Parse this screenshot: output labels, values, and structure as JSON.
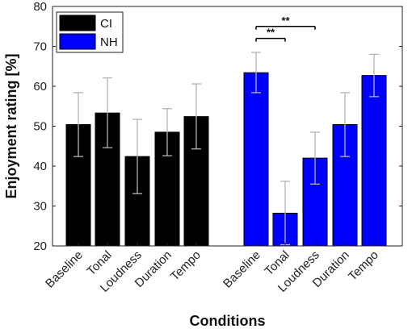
{
  "chart_data": {
    "type": "bar",
    "xlabel": "Conditions",
    "ylabel": "Enjoyment rating [%]",
    "ylim": [
      20,
      80
    ],
    "yticks": [
      20,
      30,
      40,
      50,
      60,
      70,
      80
    ],
    "grid": false,
    "legend_placement": "top-left",
    "series": [
      {
        "name": "CI",
        "color": "#000000",
        "categories": [
          "Baseline",
          "Tonal",
          "Loudness",
          "Duration",
          "Tempo"
        ],
        "values": [
          50.4,
          53.3,
          42.4,
          48.5,
          52.4
        ],
        "error_low": [
          42.4,
          44.6,
          33.1,
          42.6,
          44.3
        ],
        "error_high": [
          58.4,
          62.1,
          51.7,
          54.4,
          60.6
        ]
      },
      {
        "name": "NH",
        "color": "#0000ff",
        "categories": [
          "Baseline",
          "Tonal",
          "Loudness",
          "Duration",
          "Tempo"
        ],
        "values": [
          63.4,
          28.2,
          42.0,
          50.4,
          62.7
        ],
        "error_low": [
          58.4,
          20.3,
          35.5,
          42.4,
          57.4
        ],
        "error_high": [
          68.5,
          36.2,
          48.5,
          58.4,
          68.0
        ]
      }
    ],
    "significance": [
      {
        "series": "NH",
        "from": "Baseline",
        "to": "Tonal",
        "label": "**",
        "y": 72.0
      },
      {
        "series": "NH",
        "from": "Baseline",
        "to": "Loudness",
        "label": "**",
        "y": 75.0
      }
    ]
  }
}
